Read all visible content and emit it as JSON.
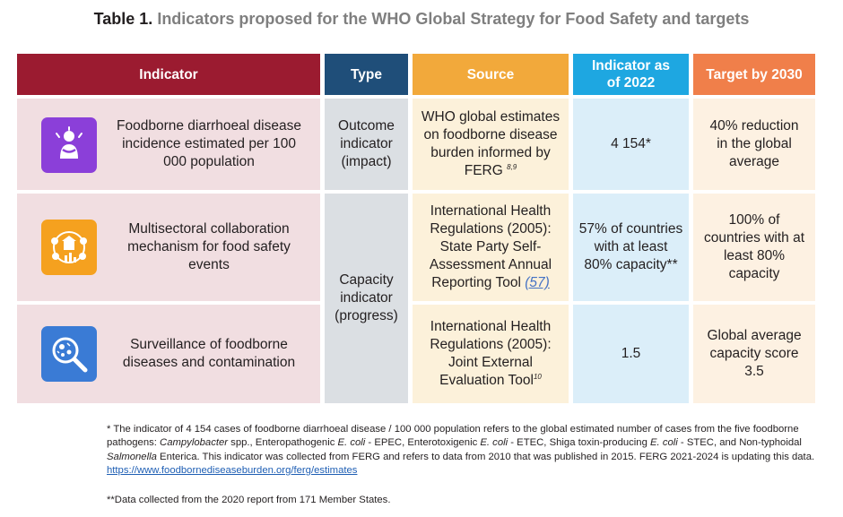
{
  "title": {
    "lead": "Table 1.",
    "rest": "Indicators proposed for the WHO Global Strategy for Food Safety and targets"
  },
  "colors": {
    "indicator_header": "#9b1b30",
    "type_header": "#1f4e79",
    "source_header": "#f2a93b",
    "now_header": "#1ea7e1",
    "target_header": "#f07f4a",
    "icon_row1": "#8b3fd9",
    "icon_row2": "#f5a11f",
    "icon_row3": "#3a7bd5"
  },
  "headers": {
    "indicator": "Indicator",
    "type": "Type",
    "source": "Source",
    "now": "Indicator as of 2022",
    "target": "Target by 2030"
  },
  "rows": [
    {
      "icon": "sick-person-icon",
      "indicator": "Foodborne diarrhoeal disease incidence estimated per 100 000 population",
      "type": "Outcome indicator (impact)",
      "source": "WHO global estimates on foodborne disease burden informed by FERG",
      "source_sup": "8,9",
      "now": "4 154*",
      "target": "40% reduction in the global average"
    },
    {
      "icon": "collaboration-network-icon",
      "indicator": "Multisectoral collaboration mechanism for food safety events",
      "type": "Capacity indicator (progress)",
      "source": "International Health Regulations (2005): State Party Self-Assessment Annual Reporting Tool",
      "source_ref": "(57)",
      "now": "57% of countries with at least 80% capacity**",
      "target": "100% of countries with at least 80% capacity"
    },
    {
      "icon": "magnifier-microbe-icon",
      "indicator": "Surveillance of foodborne diseases and contamination",
      "source": "International Health Regulations (2005): Joint External Evaluation Tool",
      "source_sup": "10",
      "now": "1.5",
      "target": "Global average capacity score 3.5"
    }
  ],
  "footnotes": {
    "note1_a": "* The indicator of 4 154 cases of foodborne diarrhoeal disease / 100 000 population refers to the global estimated number of cases from the five foodborne pathogens:",
    "note1_campy": "Campylobacter",
    "note1_b": "spp., Enteropathogenic",
    "note1_ecoli": "E. coli",
    "note1_c": "- EPEC, Enterotoxigenic",
    "note1_d": "- ETEC, Shiga toxin-producing",
    "note1_e": "- STEC, and Non-typhoidal",
    "note1_salm": "Salmonella",
    "note1_f": "Enterica. This indicator was collected from FERG and refers to data from 2010 that was published in 2015. FERG 2021-2024 is updating this data.",
    "note1_link": "https://www.foodbornediseaseburden.org/ferg/estimates",
    "note2": "**Data collected from the 2020 report from 171 Member States."
  }
}
